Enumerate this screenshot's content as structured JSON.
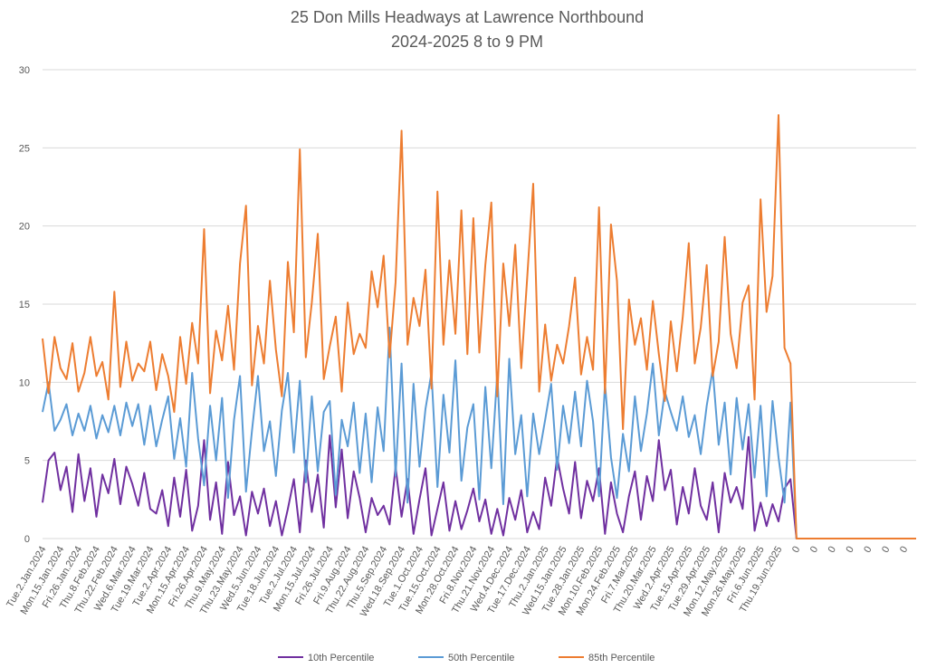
{
  "chart_data": {
    "type": "line",
    "title": "25 Don Mills Headways at Lawrence Northbound",
    "subtitle": "2024-2025 8 to 9 PM",
    "categories": [
      "Tue.2.Jan.2024",
      null,
      null,
      "Mon.15.Jan.2024",
      null,
      null,
      "Fri.26.Jan.2024",
      null,
      null,
      "Thu.8.Feb.2024",
      null,
      null,
      "Thu.22.Feb.2024",
      null,
      null,
      "Wed.6.Mar.2024",
      null,
      null,
      "Tue.19.Mar.2024",
      null,
      null,
      "Tue.2.Apr.2024",
      null,
      null,
      "Mon.15.Apr.2024",
      null,
      null,
      "Fri.26.Apr.2024",
      null,
      null,
      "Thu.9.May.2024",
      null,
      null,
      "Thu.23.May.2024",
      null,
      null,
      "Wed.5.Jun.2024",
      null,
      null,
      "Tue.18.Jun.2024",
      null,
      null,
      "Tue.2.Jul.2024",
      null,
      null,
      "Mon.15.Jul.2024",
      null,
      null,
      "Fri.26.Jul.2024",
      null,
      null,
      "Fri.9.Aug.2024",
      null,
      null,
      "Thu.22.Aug.2024",
      null,
      null,
      "Thu.5.Sep.2024",
      null,
      null,
      "Wed.18.Sep.2024",
      null,
      null,
      "Tue.1.Oct.2024",
      null,
      null,
      "Tue.15.Oct.2024",
      null,
      null,
      "Mon.28.Oct.2024",
      null,
      null,
      "Fri.8.Nov.2024",
      null,
      null,
      "Thu.21.Nov.2024",
      null,
      null,
      "Wed.4.Dec.2024",
      null,
      null,
      "Tue.17.Dec.2024",
      null,
      null,
      "Thu.2.Jan.2025",
      null,
      null,
      "Wed.15.Jan.2025",
      null,
      null,
      "Tue.28.Jan.2025",
      null,
      null,
      "Mon.10.Feb.2025",
      null,
      null,
      "Mon.24.Feb.2025",
      null,
      null,
      "Fri.7.Mar.2025",
      null,
      null,
      "Thu.20.Mar.2025",
      null,
      null,
      "Wed.2.Apr.2025",
      null,
      null,
      "Tue.15.Apr.2025",
      null,
      null,
      "Tue.29.Apr.2025",
      null,
      null,
      "Mon.12.May.2025",
      null,
      null,
      "Mon.26.May.2025",
      null,
      null,
      "Fri.6.Jun.2025",
      null,
      null,
      "Thu.19.Jun.2025",
      null,
      null,
      "0",
      null,
      null,
      "0",
      null,
      null,
      "0",
      null,
      null,
      "0",
      null,
      null,
      "0",
      null,
      null,
      "0",
      null,
      null,
      "0",
      null,
      null
    ],
    "series": [
      {
        "name": "10th Percentile",
        "color": "#7030a0",
        "values": [
          2.3,
          5.0,
          5.5,
          3.1,
          4.6,
          1.7,
          5.4,
          2.4,
          4.5,
          1.4,
          4.1,
          2.9,
          5.1,
          2.2,
          4.6,
          3.5,
          2.1,
          4.2,
          1.9,
          1.6,
          3.1,
          0.8,
          3.9,
          1.4,
          4.4,
          0.5,
          2.1,
          6.3,
          1.2,
          3.6,
          0.3,
          4.9,
          1.5,
          2.7,
          0.2,
          3.0,
          1.6,
          3.2,
          0.8,
          2.4,
          0.2,
          1.9,
          3.8,
          0.4,
          5.0,
          1.7,
          4.1,
          0.7,
          6.6,
          2.0,
          5.7,
          1.3,
          4.3,
          2.6,
          0.4,
          2.6,
          1.5,
          2.1,
          0.9,
          4.6,
          1.4,
          3.8,
          0.3,
          2.5,
          4.5,
          0.2,
          1.9,
          3.6,
          0.5,
          2.4,
          0.6,
          1.8,
          3.2,
          1.1,
          2.5,
          0.3,
          1.9,
          0.2,
          2.6,
          1.2,
          3.1,
          0.4,
          1.7,
          0.6,
          3.9,
          2.1,
          5.2,
          3.2,
          1.6,
          4.9,
          1.3,
          3.7,
          2.4,
          4.5,
          0.3,
          3.6,
          1.6,
          0.4,
          2.7,
          4.3,
          1.2,
          4.0,
          2.4,
          6.3,
          3.1,
          4.4,
          0.9,
          3.3,
          1.6,
          4.5,
          2.1,
          1.2,
          3.6,
          0.4,
          4.2,
          2.3,
          3.3,
          1.9,
          6.5,
          0.5,
          2.3,
          0.8,
          2.2,
          1.1,
          3.2,
          3.8,
          0,
          0,
          0,
          0,
          0,
          0,
          0,
          0,
          0,
          0,
          0,
          0,
          0,
          0,
          0,
          0,
          0,
          0,
          0,
          0,
          0
        ]
      },
      {
        "name": "50th Percentile",
        "color": "#5b9bd5",
        "values": [
          8.1,
          10.0,
          6.9,
          7.6,
          8.6,
          6.6,
          8.0,
          6.9,
          8.5,
          6.4,
          7.9,
          6.8,
          8.5,
          6.6,
          8.7,
          7.2,
          8.6,
          6.0,
          8.5,
          5.9,
          7.6,
          9.1,
          5.1,
          7.7,
          4.6,
          10.6,
          6.4,
          3.4,
          8.5,
          5.0,
          9.0,
          2.6,
          7.6,
          10.4,
          3.0,
          6.9,
          10.4,
          5.6,
          7.5,
          4.0,
          8.2,
          10.6,
          5.5,
          10.1,
          3.6,
          9.1,
          4.3,
          8.1,
          8.8,
          2.8,
          7.6,
          5.9,
          8.7,
          4.2,
          8.0,
          3.6,
          8.4,
          5.6,
          13.5,
          4.0,
          11.2,
          2.3,
          9.9,
          4.6,
          8.3,
          10.6,
          3.3,
          9.2,
          5.5,
          11.4,
          3.7,
          7.1,
          8.6,
          2.5,
          9.7,
          4.5,
          10.6,
          2.2,
          11.5,
          5.4,
          7.9,
          2.7,
          8.0,
          5.4,
          7.6,
          9.9,
          4.4,
          8.5,
          6.1,
          9.4,
          5.9,
          10.1,
          7.5,
          2.7,
          9.9,
          5.2,
          2.6,
          6.7,
          4.3,
          9.1,
          5.6,
          8.0,
          11.2,
          6.6,
          9.4,
          8.1,
          6.9,
          9.1,
          6.5,
          7.9,
          5.4,
          8.5,
          10.8,
          6.0,
          8.7,
          4.1,
          9.0,
          5.7,
          8.6,
          3.9,
          8.5,
          2.7,
          8.8,
          5.2,
          2.3,
          8.7,
          0,
          0,
          0,
          0,
          0,
          0,
          0,
          0,
          0,
          0,
          0,
          0,
          0,
          0,
          0,
          0,
          0,
          0,
          0,
          0,
          0
        ]
      },
      {
        "name": "85th Percentile",
        "color": "#ed7d31",
        "values": [
          12.8,
          9.3,
          12.9,
          10.9,
          10.2,
          12.5,
          9.4,
          10.6,
          12.9,
          10.4,
          11.3,
          8.9,
          15.8,
          9.7,
          12.6,
          10.1,
          11.2,
          10.7,
          12.6,
          9.5,
          11.8,
          10.4,
          8.1,
          12.9,
          9.9,
          13.8,
          11.2,
          19.8,
          9.3,
          13.3,
          11.4,
          14.9,
          10.8,
          17.6,
          21.3,
          9.8,
          13.6,
          11.2,
          16.5,
          12.1,
          9.1,
          17.7,
          13.2,
          24.9,
          11.6,
          15.1,
          19.5,
          10.2,
          12.3,
          14.2,
          9.4,
          15.1,
          11.8,
          13.1,
          12.2,
          17.1,
          14.8,
          18.1,
          11.6,
          16.4,
          26.1,
          12.4,
          15.4,
          13.6,
          17.2,
          9.6,
          22.2,
          12.4,
          17.8,
          13.1,
          21.0,
          11.8,
          20.5,
          11.9,
          17.5,
          21.5,
          9.1,
          17.6,
          13.6,
          18.8,
          10.9,
          16.7,
          22.7,
          9.4,
          13.7,
          10.1,
          12.4,
          11.2,
          13.6,
          16.7,
          10.5,
          12.9,
          10.8,
          21.2,
          9.3,
          20.1,
          16.5,
          7.0,
          15.3,
          12.4,
          14.1,
          10.8,
          15.2,
          11.8,
          8.8,
          13.9,
          10.7,
          14.2,
          18.9,
          11.2,
          13.5,
          17.5,
          10.4,
          12.6,
          19.3,
          13.1,
          10.9,
          15.1,
          16.2,
          8.9,
          21.7,
          14.5,
          16.8,
          27.1,
          12.2,
          11.2,
          0,
          0,
          0,
          0,
          0,
          0,
          0,
          0,
          0,
          0,
          0,
          0,
          0,
          0,
          0,
          0,
          0,
          0,
          0,
          0,
          0
        ]
      }
    ],
    "ylim": [
      0,
      30
    ],
    "yticks": [
      0,
      5,
      10,
      15,
      20,
      25,
      30
    ],
    "grid": true,
    "legend": "bottom"
  }
}
